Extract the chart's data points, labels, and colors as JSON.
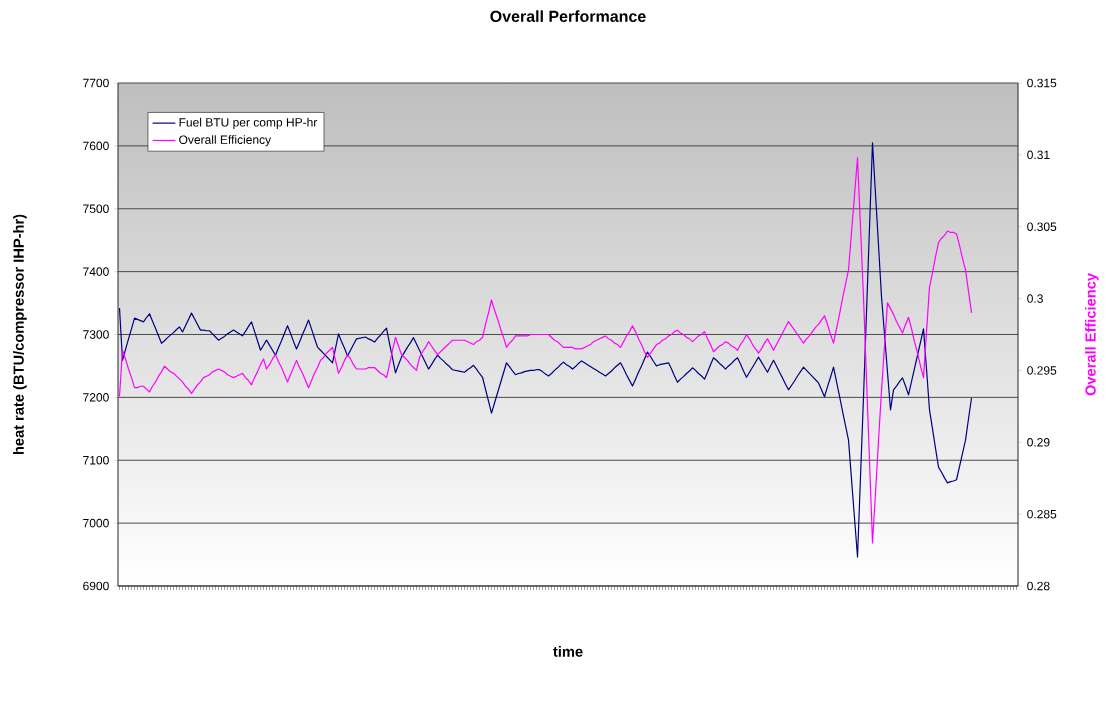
{
  "chart_data": {
    "type": "line",
    "title": "Overall Performance",
    "xlabel": "time",
    "ylabel": "heat rate (BTU/compressor IHP-hr)",
    "y2label": "Overall Efficiency",
    "categories": [
      null,
      null,
      null,
      null,
      null,
      null,
      null,
      null,
      null,
      null,
      null,
      null,
      null,
      null,
      null,
      null,
      null,
      null,
      null,
      null,
      null,
      null,
      null,
      null,
      null,
      null,
      null,
      null,
      null,
      null,
      null,
      null,
      null,
      null,
      null,
      null,
      null,
      null,
      null,
      null,
      null,
      null,
      null,
      null,
      null,
      null,
      null,
      null,
      null,
      null,
      null,
      null,
      null,
      null,
      null,
      null,
      null,
      null,
      null,
      null,
      null,
      null,
      null,
      null,
      null,
      null,
      null,
      null,
      null,
      null,
      null,
      null,
      null,
      null,
      null,
      null,
      null,
      null,
      null,
      null,
      null,
      null,
      null,
      null,
      null,
      null,
      null,
      null,
      null,
      null,
      null,
      null,
      null,
      null,
      null,
      null,
      null,
      null,
      null,
      null,
      null,
      null,
      null,
      null,
      null,
      null,
      null,
      null,
      null,
      null,
      null,
      null,
      null,
      null,
      null,
      null,
      null,
      null,
      null,
      null,
      null,
      null,
      null,
      null,
      null,
      null,
      null,
      null,
      null,
      null,
      null,
      null,
      null,
      null,
      null,
      null,
      null,
      null,
      null,
      null,
      null,
      null,
      null,
      null,
      null,
      null,
      null,
      null,
      null,
      null,
      null,
      null,
      null,
      null,
      null,
      null,
      null,
      null,
      null,
      null,
      null,
      null,
      null,
      null,
      null,
      null,
      null,
      null,
      null,
      null,
      null,
      null,
      null,
      null,
      null,
      null,
      null,
      null,
      null,
      null,
      null,
      null,
      null,
      null,
      null,
      null,
      null,
      null,
      null,
      null,
      null,
      null,
      null,
      null,
      null,
      null,
      null,
      null,
      null,
      null,
      null,
      null,
      null,
      null,
      null,
      null,
      null,
      null,
      null,
      null,
      null,
      null,
      null,
      null,
      null,
      null,
      null,
      null,
      null,
      null,
      null,
      null,
      null,
      null,
      null,
      null,
      null,
      null,
      null,
      null,
      null,
      null,
      null,
      null,
      null,
      null,
      null,
      null,
      null,
      null,
      null,
      null,
      null,
      null,
      null,
      null,
      null,
      null,
      null,
      null,
      null,
      null,
      null,
      null,
      null,
      null,
      null,
      null,
      null,
      null,
      null,
      null,
      null,
      null,
      null,
      null,
      null,
      null,
      null,
      null,
      null,
      null,
      null,
      null,
      null,
      null,
      null,
      null,
      null,
      null,
      null,
      null,
      null,
      null,
      null,
      null,
      null,
      null,
      null,
      null,
      null,
      null,
      null,
      null,
      null,
      null,
      null,
      null,
      null,
      null
    ],
    "ylim": [
      6900,
      7700
    ],
    "yticks": [
      6900,
      7000,
      7100,
      7200,
      7300,
      7400,
      7500,
      7600,
      7700
    ],
    "y2lim": [
      0.28,
      0.315
    ],
    "y2ticks": [
      0.28,
      0.285,
      0.29,
      0.295,
      0.3,
      0.305,
      0.31,
      0.315
    ],
    "grid": "y",
    "legend": "top left",
    "series": [
      {
        "name": "Fuel BTU per comp HP-hr",
        "color": "#000080",
        "values": [
          7342,
          7259,
          7276,
          7293,
          7309,
          7326,
          7324,
          7322,
          7320,
          7327,
          7333,
          7321,
          7310,
          7298,
          7286,
          7290,
          7295,
          7299,
          7303,
          7308,
          7312,
          7304,
          7314,
          7324,
          7334,
          7325,
          7316,
          7307,
          7307,
          7306,
          7306,
          7301,
          7296,
          7291,
          7294,
          7297,
          7301,
          7304,
          7307,
          7304,
          7301,
          7298,
          7305,
          7313,
          7320,
          7305,
          7290,
          7275,
          7283,
          7291,
          7283,
          7275,
          7267,
          7279,
          7290,
          7302,
          7314,
          7302,
          7289,
          7277,
          7288,
          7300,
          7311,
          7323,
          7309,
          7294,
          7280,
          7275,
          7270,
          7265,
          7260,
          7255,
          7278,
          7301,
          7289,
          7278,
          7266,
          7275,
          7284,
          7293,
          7294,
          7295,
          7296,
          7293,
          7291,
          7288,
          7294,
          7299,
          7305,
          7310,
          7286,
          7263,
          7239,
          7252,
          7264,
          7272,
          7280,
          7287,
          7295,
          7285,
          7275,
          7265,
          7255,
          7245,
          7252,
          7260,
          7267,
          7262,
          7258,
          7253,
          7249,
          7244,
          7243,
          7242,
          7241,
          7240,
          7244,
          7247,
          7251,
          7245,
          7238,
          7232,
          7213,
          7194,
          7175,
          7191,
          7207,
          7223,
          7239,
          7255,
          7249,
          7242,
          7236,
          7238,
          7239,
          7241,
          7242,
          7243,
          7243,
          7244,
          7244,
          7241,
          7237,
          7234,
          7238,
          7243,
          7247,
          7252,
          7256,
          7252,
          7249,
          7245,
          7249,
          7254,
          7258,
          7255,
          7252,
          7249,
          7246,
          7243,
          7240,
          7237,
          7234,
          7238,
          7242,
          7247,
          7251,
          7255,
          7246,
          7236,
          7227,
          7218,
          7229,
          7240,
          7250,
          7261,
          7272,
          7265,
          7257,
          7250,
          7252,
          7253,
          7254,
          7255,
          7245,
          7234,
          7224,
          7229,
          7233,
          7238,
          7242,
          7247,
          7243,
          7238,
          7234,
          7229,
          7240,
          7252,
          7263,
          7259,
          7254,
          7250,
          7245,
          7250,
          7254,
          7259,
          7263,
          7253,
          7242,
          7232,
          7240,
          7248,
          7256,
          7264,
          7256,
          7248,
          7240,
          7250,
          7259,
          7250,
          7240,
          7231,
          7221,
          7212,
          7219,
          7226,
          7234,
          7241,
          7248,
          7243,
          7238,
          7233,
          7228,
          7223,
          7212,
          7201,
          7217,
          7232,
          7248,
          7225,
          7202,
          7178,
          7155,
          7132,
          7070,
          7008,
          6946,
          7074,
          7201,
          7336,
          7470,
          7605,
          7523,
          7442,
          7360,
          7300,
          7240,
          7180,
          7212,
          7218,
          7225,
          7231,
          7218,
          7204,
          7225,
          7246,
          7267,
          7288,
          7309,
          7245,
          7180,
          7150,
          7119,
          7089,
          7081,
          7072,
          7064,
          7066,
          7067,
          7069,
          7090,
          7111,
          7132,
          7166,
          7199,
          null,
          null,
          null,
          null,
          null,
          null,
          null,
          null,
          null,
          null,
          null,
          null,
          null,
          null,
          null
        ]
      },
      {
        "name": "Overall Efficiency",
        "color": "#ff00ff",
        "axis": "y2",
        "values": [
          0.2932,
          0.2964,
          0.2958,
          0.2951,
          0.2945,
          0.2938,
          0.2938,
          0.2939,
          0.2939,
          0.2937,
          0.2935,
          0.2939,
          0.2942,
          0.2946,
          0.2949,
          0.2953,
          0.2951,
          0.2949,
          0.2948,
          0.2946,
          0.2944,
          0.2942,
          0.2939,
          0.2937,
          0.2934,
          0.2937,
          0.294,
          0.2942,
          0.2945,
          0.2946,
          0.2947,
          0.2949,
          0.295,
          0.2951,
          0.295,
          0.2949,
          0.2947,
          0.2946,
          0.2945,
          0.2946,
          0.2947,
          0.2948,
          0.2945,
          0.2943,
          0.294,
          0.2945,
          0.2949,
          0.2954,
          0.2958,
          0.2951,
          0.2954,
          0.2958,
          0.2961,
          0.2956,
          0.2952,
          0.2947,
          0.2942,
          0.2947,
          0.2952,
          0.2957,
          0.2952,
          0.2948,
          0.2943,
          0.2938,
          0.2943,
          0.2948,
          0.2952,
          0.2957,
          0.2959,
          0.2962,
          0.2964,
          0.2966,
          0.2957,
          0.2948,
          0.2952,
          0.2957,
          0.2961,
          0.2958,
          0.2954,
          0.2951,
          0.2951,
          0.2951,
          0.2951,
          0.2952,
          0.2952,
          0.2952,
          0.295,
          0.2948,
          0.2947,
          0.2945,
          0.2954,
          0.2964,
          0.2973,
          0.2967,
          0.2961,
          0.2959,
          0.2957,
          0.2954,
          0.2952,
          0.295,
          0.2959,
          0.2963,
          0.2966,
          0.297,
          0.2967,
          0.2964,
          0.2961,
          0.2963,
          0.2965,
          0.2967,
          0.2969,
          0.2971,
          0.2971,
          0.2971,
          0.2971,
          0.2971,
          0.297,
          0.2969,
          0.2968,
          0.297,
          0.2971,
          0.2973,
          0.2982,
          0.299,
          0.2999,
          0.2992,
          0.2986,
          0.2979,
          0.2973,
          0.2966,
          0.2969,
          0.2971,
          0.2974,
          0.2974,
          0.2974,
          0.2974,
          0.2974,
          0.2975,
          0.2975,
          0.2975,
          0.2975,
          0.2975,
          0.2975,
          0.2975,
          0.2973,
          0.2971,
          0.297,
          0.2968,
          0.2966,
          0.2966,
          0.2966,
          0.2966,
          0.2965,
          0.2965,
          0.2965,
          0.2966,
          0.2967,
          0.2968,
          0.297,
          0.2971,
          0.2972,
          0.2973,
          0.2974,
          0.2972,
          0.2971,
          0.2969,
          0.2968,
          0.2966,
          0.297,
          0.2974,
          0.2977,
          0.2981,
          0.2977,
          0.2972,
          0.2968,
          0.2963,
          0.2959,
          0.2962,
          0.2965,
          0.2968,
          0.2969,
          0.2971,
          0.2972,
          0.2974,
          0.2975,
          0.2977,
          0.2978,
          0.2976,
          0.2975,
          0.2973,
          0.2972,
          0.297,
          0.2972,
          0.2974,
          0.2975,
          0.2977,
          0.2972,
          0.2968,
          0.2963,
          0.2965,
          0.2967,
          0.2968,
          0.297,
          0.2969,
          0.2967,
          0.2966,
          0.2964,
          0.2968,
          0.2971,
          0.2975,
          0.2972,
          0.2968,
          0.2965,
          0.2962,
          0.2965,
          0.2969,
          0.2972,
          0.2968,
          0.2964,
          0.2968,
          0.2972,
          0.2976,
          0.298,
          0.2984,
          0.2981,
          0.2978,
          0.2975,
          0.2972,
          0.2969,
          0.2972,
          0.2974,
          0.2977,
          0.298,
          0.2982,
          0.2985,
          0.2988,
          0.2982,
          0.2975,
          0.2969,
          0.2979,
          0.2989,
          0.3,
          0.301,
          0.302,
          0.3046,
          0.3072,
          0.3098,
          0.305,
          0.3001,
          0.2944,
          0.2887,
          0.283,
          0.2865,
          0.2901,
          0.2936,
          0.2967,
          0.2997,
          0.2993,
          0.2989,
          0.2984,
          0.298,
          0.2976,
          0.2982,
          0.2987,
          0.2979,
          0.297,
          0.2962,
          0.2953,
          0.2945,
          0.2977,
          0.3008,
          0.3018,
          0.3029,
          0.3039,
          0.3042,
          0.3044,
          0.3047,
          0.3046,
          0.3046,
          0.3045,
          0.3037,
          0.3028,
          0.302,
          0.3005,
          0.299,
          null,
          null,
          null,
          null,
          null,
          null,
          null,
          null,
          null,
          null,
          null,
          null,
          null,
          null,
          null
        ]
      }
    ]
  }
}
